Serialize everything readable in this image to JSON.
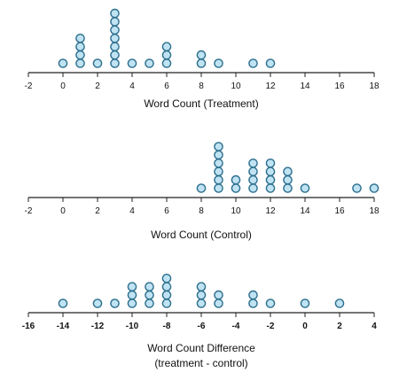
{
  "chart_data": [
    {
      "type": "scatter",
      "subtype": "dot-plot",
      "xlabel": "Word Count (Treatment)",
      "xlim": [
        -2,
        18
      ],
      "ticks": [
        -2,
        0,
        2,
        4,
        6,
        8,
        10,
        12,
        14,
        16,
        18
      ],
      "dot_color": "#bfe3f3",
      "dot_edge_color": "#2c6e8c",
      "points": [
        {
          "x": 0,
          "count": 1
        },
        {
          "x": 1,
          "count": 4
        },
        {
          "x": 2,
          "count": 1
        },
        {
          "x": 3,
          "count": 7
        },
        {
          "x": 4,
          "count": 1
        },
        {
          "x": 5,
          "count": 1
        },
        {
          "x": 6,
          "count": 3
        },
        {
          "x": 8,
          "count": 2
        },
        {
          "x": 9,
          "count": 1
        },
        {
          "x": 11,
          "count": 1
        },
        {
          "x": 12,
          "count": 1
        }
      ]
    },
    {
      "type": "scatter",
      "subtype": "dot-plot",
      "xlabel": "Word Count (Control)",
      "xlim": [
        -2,
        18
      ],
      "ticks": [
        -2,
        0,
        2,
        4,
        6,
        8,
        10,
        12,
        14,
        16,
        18
      ],
      "dot_color": "#bfe3f3",
      "dot_edge_color": "#2c6e8c",
      "points": [
        {
          "x": 8,
          "count": 1
        },
        {
          "x": 9,
          "count": 6
        },
        {
          "x": 10,
          "count": 2
        },
        {
          "x": 11,
          "count": 4
        },
        {
          "x": 12,
          "count": 4
        },
        {
          "x": 13,
          "count": 3
        },
        {
          "x": 14,
          "count": 1
        },
        {
          "x": 17,
          "count": 1
        },
        {
          "x": 18,
          "count": 1
        }
      ]
    },
    {
      "type": "scatter",
      "subtype": "dot-plot",
      "xlabel": "Word Count Difference",
      "xlabel_line2": "(treatment - control)",
      "xlim": [
        -16,
        4
      ],
      "ticks": [
        -16,
        -14,
        -12,
        -10,
        -8,
        -6,
        -4,
        -2,
        0,
        2,
        4
      ],
      "tick_font_weight": "bold",
      "dot_color": "#bfe3f3",
      "dot_edge_color": "#2c6e8c",
      "points": [
        {
          "x": -14,
          "count": 1
        },
        {
          "x": -12,
          "count": 1
        },
        {
          "x": -11,
          "count": 1
        },
        {
          "x": -10,
          "count": 3
        },
        {
          "x": -9,
          "count": 3
        },
        {
          "x": -8,
          "count": 4
        },
        {
          "x": -6,
          "count": 3
        },
        {
          "x": -5,
          "count": 2
        },
        {
          "x": -3,
          "count": 2
        },
        {
          "x": -2,
          "count": 1
        },
        {
          "x": 0,
          "count": 1
        },
        {
          "x": 2,
          "count": 1
        }
      ]
    }
  ]
}
